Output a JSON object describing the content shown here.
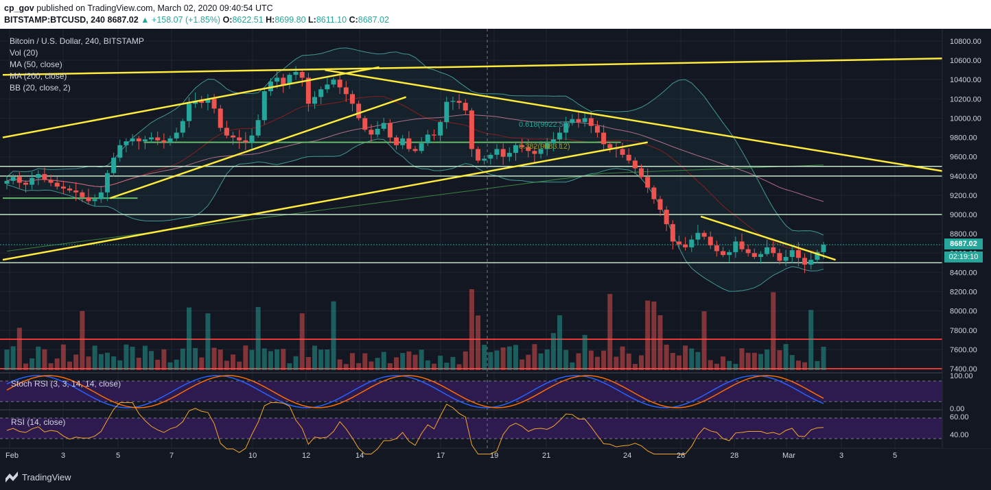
{
  "header": {
    "publisher": "cp_gov",
    "published_on": " published on TradingView.com, March 02, 2020 09:40:54 UTC",
    "symbol": "BITSTAMP:BTCUSD, 240",
    "last": "8687.02",
    "change": "▲ +158.07 (+1.85%)",
    "o_label": "O:",
    "o_value": "8622.51",
    "h_label": "H:",
    "h_value": "8699.80",
    "l_label": "L:",
    "l_value": "8611.10",
    "c_label": "C:",
    "c_value": "8687.02"
  },
  "legend": {
    "title": "Bitcoin / U.S. Dollar, 240, BITSTAMP",
    "vol": "Vol (20)",
    "ma50": "MA (50, close)",
    "ma200": "MA (200, close)",
    "bb": "BB (20, close, 2)"
  },
  "panes": {
    "stoch": "Stoch RSI (3, 3, 14, 14, close)",
    "rsi": "RSI (14, close)"
  },
  "tags": {
    "price": "8687.02",
    "timer": "02:19:10"
  },
  "fib": {
    "f618": "0.618(9922.58)",
    "f382": "0.382(9683.12)"
  },
  "branding": {
    "logo": "TradingView"
  },
  "colors": {
    "bg": "#131722",
    "up": "#26a69a",
    "down": "#ef5350",
    "trendline": "#ffeb3b",
    "level": "#c8e6c9",
    "red_level": "#e53935",
    "bb": "#4db6ac",
    "ma50": "#b71c1c",
    "ma200": "#2e7d32",
    "purple": "#311b54"
  },
  "chart_data": {
    "type": "candlestick",
    "price_axis": [
      "10800.00",
      "10600.00",
      "10400.00",
      "10200.00",
      "10000.00",
      "9800.00",
      "9600.00",
      "9400.00",
      "9200.00",
      "9000.00",
      "8800.00",
      "8600.00",
      "8400.00",
      "8200.00",
      "8000.00",
      "7800.00",
      "7600.00",
      "7400.00"
    ],
    "price_range": [
      7380,
      10880
    ],
    "stoch_axis": [
      "100.00",
      "0.00"
    ],
    "rsi_axis": [
      "60.00",
      "40.00"
    ],
    "x_labels": [
      "Feb",
      "3",
      "5",
      "7",
      "10",
      "12",
      "14",
      "17",
      "19",
      "21",
      "24",
      "26",
      "28",
      "Mar",
      "3",
      "5"
    ],
    "horizontal_levels": [
      9500,
      9400,
      9000,
      8500,
      8687
    ],
    "red_levels": [
      7700,
      7420
    ],
    "short_levels": [
      {
        "price": 9750,
        "from": "Feb 6",
        "to": "Feb 23"
      },
      {
        "price": 9170,
        "from": "Feb 1",
        "to": "Feb 5"
      }
    ],
    "trendlines": [
      {
        "from": [
          "Feb 1",
          9800
        ],
        "to": [
          "Feb 14",
          10530
        ]
      },
      {
        "from": [
          "Feb 1",
          10450
        ],
        "to": [
          "Mar 6",
          10620
        ]
      },
      {
        "from": [
          "Feb 13",
          10500
        ],
        "to": [
          "Mar 6",
          9450
        ]
      },
      {
        "from": [
          "Feb 1",
          8530
        ],
        "to": [
          "Feb 24",
          9750
        ]
      },
      {
        "from": [
          "Feb 5",
          9170
        ],
        "to": [
          "Feb 15",
          10220
        ]
      },
      {
        "from": [
          "Feb 27",
          8980
        ],
        "to": [
          "Mar 2",
          8530
        ]
      }
    ],
    "closes": [
      9350,
      9390,
      9330,
      9310,
      9380,
      9420,
      9360,
      9330,
      9290,
      9270,
      9250,
      9230,
      9180,
      9140,
      9160,
      9230,
      9430,
      9590,
      9720,
      9760,
      9790,
      9760,
      9780,
      9800,
      9770,
      9750,
      9790,
      9850,
      9970,
      10150,
      10180,
      10160,
      10200,
      10100,
      9900,
      9820,
      9800,
      9770,
      9750,
      9820,
      9980,
      10280,
      10380,
      10420,
      10350,
      10450,
      10480,
      10420,
      10150,
      10220,
      10300,
      10350,
      10400,
      10320,
      10250,
      10150,
      10000,
      9880,
      9830,
      9890,
      9950,
      9800,
      9720,
      9790,
      9680,
      9660,
      9740,
      9830,
      9820,
      9960,
      10170,
      10180,
      10160,
      10080,
      9680,
      9560,
      9580,
      9620,
      9680,
      9600,
      9640,
      9720,
      9700,
      9660,
      9630,
      9680,
      9740,
      9780,
      9850,
      9950,
      9990,
      9960,
      10000,
      9920,
      9850,
      9730,
      9690,
      9680,
      9620,
      9560,
      9480,
      9390,
      9280,
      9160,
      9050,
      8900,
      8720,
      8690,
      8660,
      8740,
      8810,
      8770,
      8680,
      8620,
      8580,
      8610,
      8720,
      8640,
      8600,
      8560,
      8590,
      8660,
      8600,
      8520,
      8560,
      8630,
      8550,
      8480,
      8530,
      8610,
      8687
    ],
    "series": [
      {
        "name": "Vol (20)"
      },
      {
        "name": "MA (50, close)"
      },
      {
        "name": "MA (200, close)"
      },
      {
        "name": "BB (20, close, 2)"
      },
      {
        "name": "Stoch RSI (3, 3, 14, 14, close)"
      },
      {
        "name": "RSI (14, close)"
      }
    ]
  }
}
